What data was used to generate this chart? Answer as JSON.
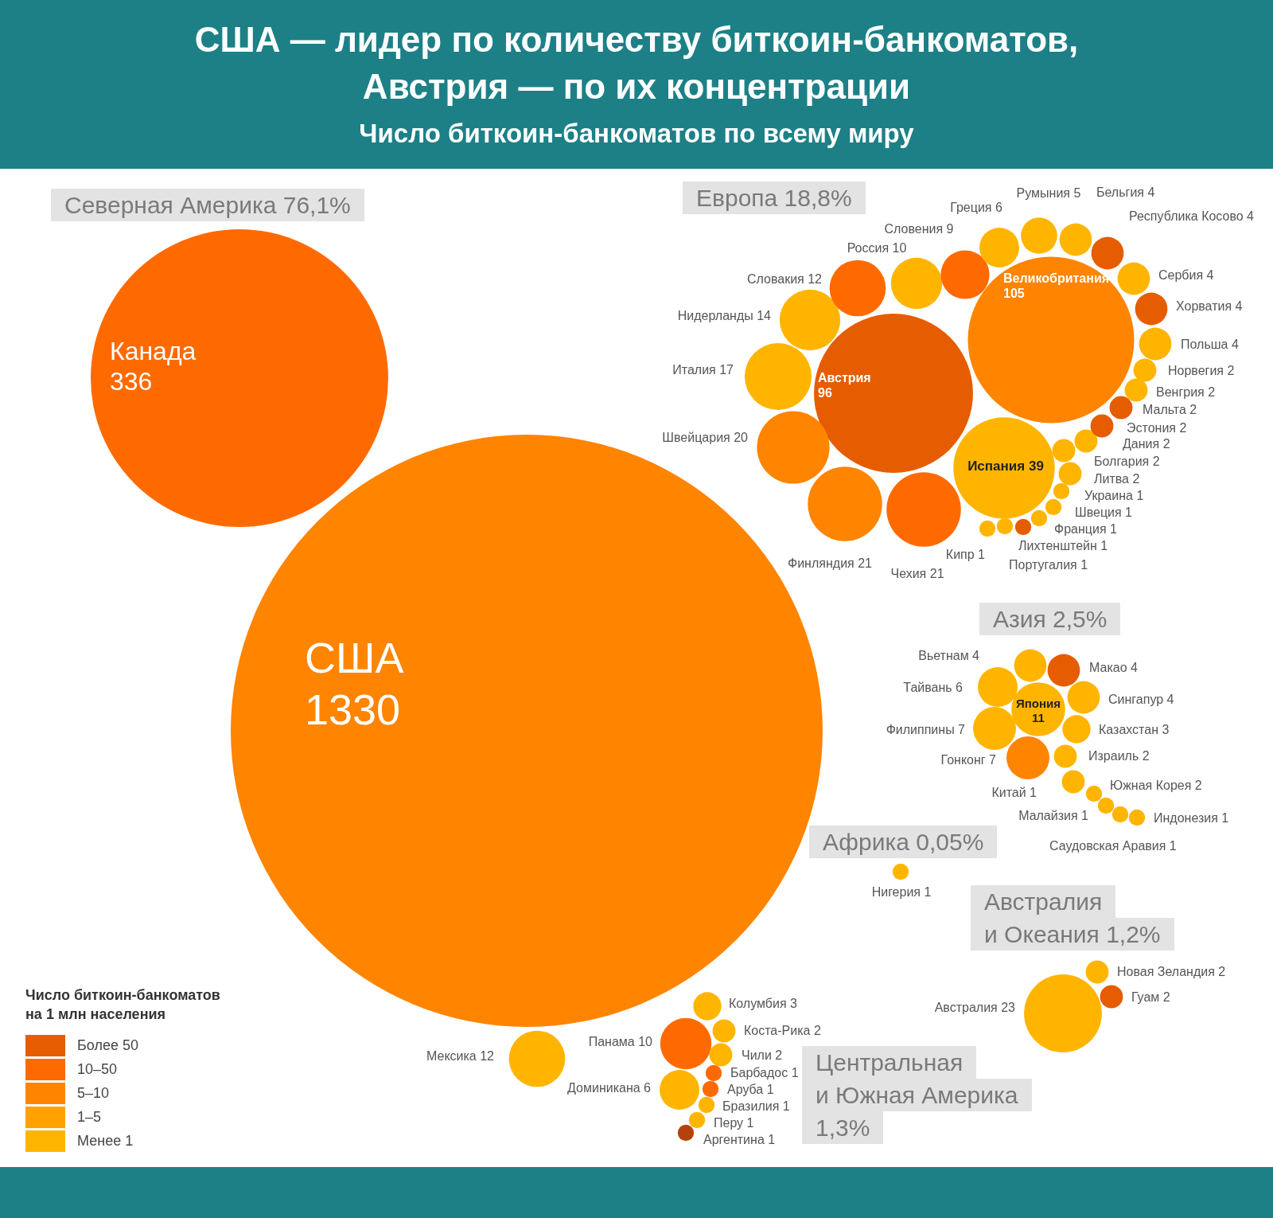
{
  "chart_data": [
    {
      "type": "other",
      "title": "США — лидер по количеству биткоин-банкоматов, Австрия — по их концентрации",
      "subtitle": "Число биткоин-банкоматов по всему миру"
    },
    {
      "type": "other",
      "title": "Северная Америка 76,1%",
      "categories": [
        "Канада",
        "США"
      ],
      "values": [
        336,
        1330
      ],
      "colors": [
        "#ff6a00",
        "#ff8400"
      ],
      "data_labels": true
    },
    {
      "type": "other",
      "title": "Европа 18,8%",
      "categories": [
        "Великобритания",
        "Австрия",
        "Испания",
        "Финляндия",
        "Чехия",
        "Швейцария",
        "Италия",
        "Нидерланды",
        "Словакия",
        "Россия",
        "Словения",
        "Греция",
        "Румыния",
        "Бельгия",
        "Сербия",
        "Польша",
        "Хорватия",
        "Республика Косово",
        "Литва",
        "Болгария",
        "Дания",
        "Эстония",
        "Мальта",
        "Венгрия",
        "Норвегия",
        "Кипр",
        "Португалия",
        "Лихтенштейн",
        "Франция",
        "Швеция",
        "Украина"
      ],
      "values": [
        105,
        96,
        39,
        21,
        21,
        20,
        17,
        14,
        12,
        10,
        9,
        6,
        5,
        4,
        4,
        4,
        4,
        4,
        2,
        2,
        2,
        2,
        2,
        2,
        2,
        1,
        1,
        1,
        1,
        1,
        1
      ],
      "colors": [
        "#ff8400",
        "#e65c00",
        "#ffb500",
        "#ff8400",
        "#ff6a00",
        "#ff8400",
        "#ffb500",
        "#ffb500",
        "#ff6a00",
        "#ffb500",
        "#ff6a00",
        "#ffb500",
        "#ffb500",
        "#ffb500",
        "#ffb500",
        "#ffb500",
        "#e65c00",
        "#e65c00",
        "#ffb500",
        "#ffb500",
        "#ffb500",
        "#e65c00",
        "#e65c00",
        "#ffb500",
        "#ffb500",
        "#ffb500",
        "#ffb500",
        "#e65c00",
        "#ffb500",
        "#ffb500",
        "#ffb500"
      ],
      "data_labels": true
    },
    {
      "type": "other",
      "title": "Азия 2,5%",
      "categories": [
        "Япония",
        "Гонконг",
        "Филиппины",
        "Тайвань",
        "Вьетнам",
        "Макао",
        "Сингапур",
        "Казахстан",
        "Израиль",
        "Южная Корея",
        "Малайзия",
        "Китай",
        "Саудовская Аравия",
        "Индонезия"
      ],
      "values": [
        11,
        7,
        7,
        6,
        4,
        4,
        4,
        3,
        2,
        2,
        1,
        1,
        1,
        1
      ],
      "colors": [
        "#ffb500",
        "#ff8400",
        "#ffb500",
        "#ffb500",
        "#ffb500",
        "#e65c00",
        "#ffb500",
        "#ffb500",
        "#ffb500",
        "#ffb500",
        "#ffb500",
        "#ffb500",
        "#ffb500",
        "#ffb500"
      ],
      "data_labels": true
    },
    {
      "type": "other",
      "title": "Африка 0,05%",
      "categories": [
        "Нигерия"
      ],
      "values": [
        1
      ],
      "colors": [
        "#ffb500"
      ],
      "data_labels": true
    },
    {
      "type": "other",
      "title": "Австралия и Океания 1,2%",
      "categories": [
        "Австралия",
        "Гуам",
        "Новая Зеландия"
      ],
      "values": [
        23,
        2,
        2
      ],
      "colors": [
        "#ffb500",
        "#e65c00",
        "#ffb500"
      ],
      "data_labels": true
    },
    {
      "type": "other",
      "legend_title": "Число биткоин-банкоматов на 1 млн населения",
      "legend": "bottom left",
      "series": [
        {
          "name": "Более 50",
          "color": "#e65c00"
        },
        {
          "name": "10–50",
          "color": "#ff6a00"
        },
        {
          "name": "5–10",
          "color": "#ff8400"
        },
        {
          "name": "1–5",
          "color": "#ffa200"
        },
        {
          "name": "Менее 1",
          "color": "#ffb500"
        }
      ]
    },
    {
      "type": "other",
      "title": "Центральная и Южная Америка 1,3%",
      "categories": [
        "Мексика",
        "Панама",
        "Доминикана",
        "Колумбия",
        "Чили",
        "Коста-Рика",
        "Перу",
        "Аруба",
        "Аргентина",
        "Бразилия",
        "Барбадос"
      ],
      "values": [
        12,
        10,
        6,
        3,
        2,
        2,
        1,
        1,
        1,
        1,
        1
      ],
      "colors": [
        "#ffb500",
        "#ff6a00",
        "#ffb500",
        "#ffb500",
        "#ffb500",
        "#ffb500",
        "#ffb500",
        "#ff6a00",
        "#b5420d",
        "#ffb500",
        "#ff6a00"
      ],
      "data_labels": true
    }
  ]
}
